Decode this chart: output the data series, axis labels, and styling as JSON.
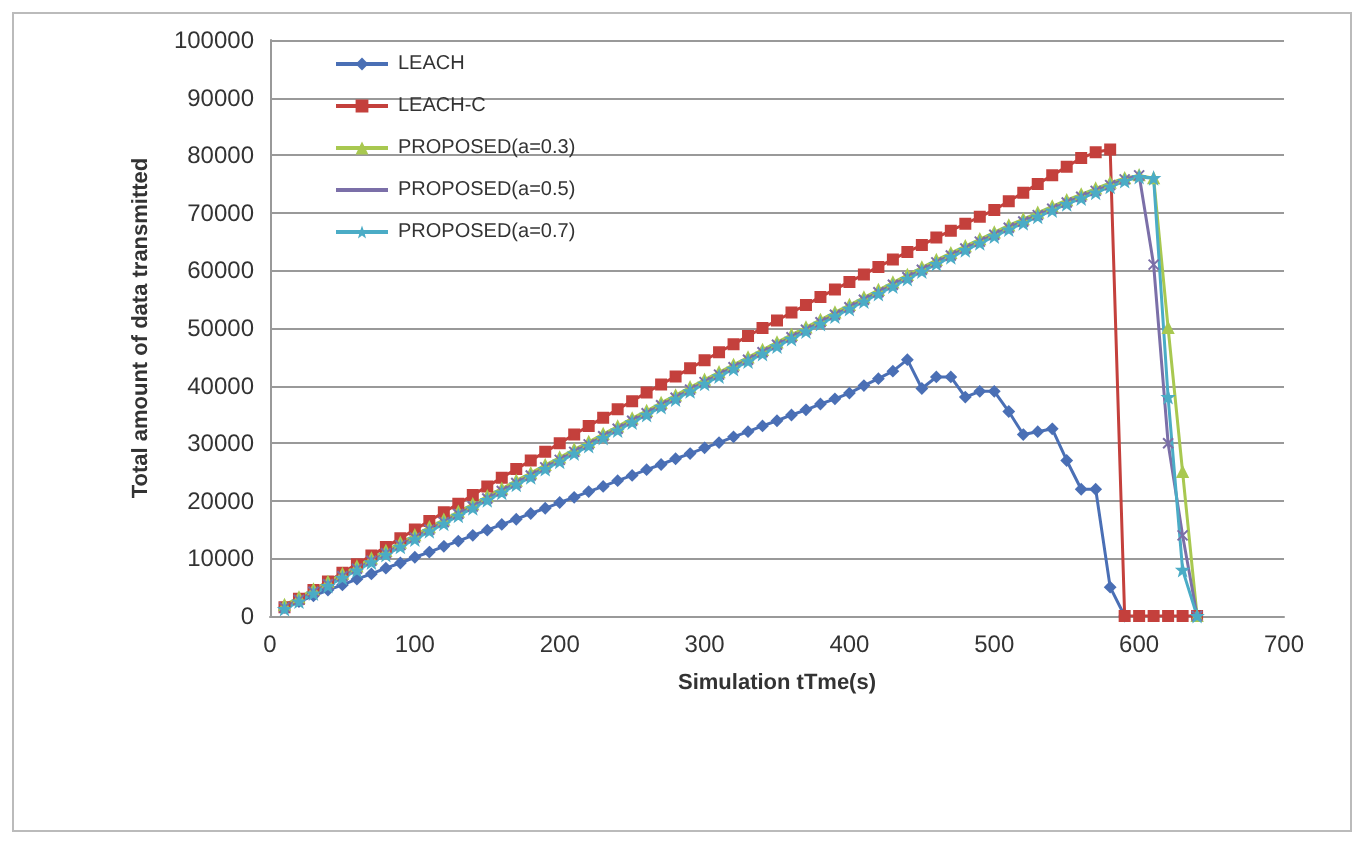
{
  "chart_data": {
    "type": "line",
    "xlabel": "Simulation tTme(s)",
    "ylabel": "Total amount of data transmitted",
    "x": [
      10,
      20,
      30,
      40,
      50,
      60,
      70,
      80,
      90,
      100,
      110,
      120,
      130,
      140,
      150,
      160,
      170,
      180,
      190,
      200,
      210,
      220,
      230,
      240,
      250,
      260,
      270,
      280,
      290,
      300,
      310,
      320,
      330,
      340,
      350,
      360,
      370,
      380,
      390,
      400,
      410,
      420,
      430,
      440,
      450,
      460,
      470,
      480,
      490,
      500,
      510,
      520,
      530,
      540,
      550,
      560,
      570,
      580,
      590,
      600,
      610,
      620,
      630,
      640
    ],
    "series": [
      {
        "name": "LEACH",
        "color": "#4a6fb5",
        "marker": "diamond",
        "values": [
          1500,
          2500,
          3500,
          4500,
          5400,
          6400,
          7300,
          8300,
          9200,
          10200,
          11100,
          12100,
          13000,
          14000,
          14900,
          15900,
          16800,
          17800,
          18700,
          19700,
          20600,
          21600,
          22500,
          23500,
          24400,
          25400,
          26300,
          27300,
          28200,
          29200,
          30100,
          31100,
          32000,
          33000,
          33900,
          34900,
          35800,
          36800,
          37700,
          38700,
          40000,
          41200,
          42500,
          44500,
          39500,
          41500,
          41500,
          38000,
          39000,
          39000,
          35500,
          31500,
          32000,
          32500,
          27000,
          22000,
          22000,
          5000,
          0,
          null,
          null,
          null,
          null,
          null
        ]
      },
      {
        "name": "LEACH-C",
        "color": "#c4403c",
        "marker": "square",
        "values": [
          1500,
          3000,
          4500,
          6000,
          7500,
          9000,
          10500,
          12000,
          13500,
          15000,
          16500,
          18000,
          19500,
          21000,
          22500,
          24000,
          25500,
          27000,
          28500,
          30000,
          31500,
          33000,
          34400,
          35900,
          37300,
          38800,
          40200,
          41600,
          43000,
          44400,
          45800,
          47200,
          48600,
          50000,
          51300,
          52700,
          54000,
          55400,
          56700,
          58000,
          59300,
          60600,
          61900,
          63200,
          64400,
          65700,
          66900,
          68100,
          69300,
          70500,
          72000,
          73500,
          75000,
          76500,
          78000,
          79500,
          80500,
          81000,
          0,
          0,
          0,
          0,
          0,
          0
        ]
      },
      {
        "name": "PROPOSED(a=0.3)",
        "color": "#a8c850",
        "marker": "triangle",
        "values": [
          1900,
          3200,
          4600,
          5900,
          7300,
          8600,
          10000,
          11300,
          12700,
          14000,
          15400,
          16700,
          18100,
          19400,
          20800,
          22100,
          23500,
          24800,
          26200,
          27500,
          28900,
          30200,
          31600,
          32900,
          34300,
          35600,
          37000,
          38300,
          39700,
          41000,
          42300,
          43600,
          44900,
          46200,
          47500,
          48800,
          50100,
          51400,
          52700,
          54000,
          55300,
          56600,
          57900,
          59200,
          60500,
          61800,
          63000,
          64200,
          65400,
          66600,
          67800,
          68900,
          70000,
          71100,
          72200,
          73200,
          74200,
          75200,
          76000,
          76500,
          76000,
          50000,
          25000,
          0
        ]
      },
      {
        "name": "PROPOSED(a=0.5)",
        "color": "#7b6fa8",
        "marker": "cross",
        "values": [
          1500,
          2800,
          4200,
          5500,
          6900,
          8200,
          9600,
          10900,
          12300,
          13600,
          15000,
          16300,
          17700,
          19000,
          20400,
          21700,
          23100,
          24400,
          25800,
          27100,
          28500,
          29800,
          31200,
          32500,
          33900,
          35200,
          36600,
          37900,
          39300,
          40600,
          41900,
          43200,
          44500,
          45800,
          47100,
          48400,
          49700,
          51000,
          52300,
          53600,
          54900,
          56200,
          57500,
          58800,
          60100,
          61400,
          62600,
          63800,
          65000,
          66200,
          67400,
          68500,
          69600,
          70700,
          71800,
          72800,
          73800,
          74800,
          75800,
          76500,
          61000,
          30000,
          14000,
          0
        ]
      },
      {
        "name": "PROPOSED(a=0.7)",
        "color": "#4bacc6",
        "marker": "star",
        "values": [
          1200,
          2500,
          3900,
          5200,
          6600,
          7900,
          9300,
          10600,
          12000,
          13300,
          14700,
          16000,
          17400,
          18700,
          20100,
          21400,
          22800,
          24100,
          25500,
          26800,
          28200,
          29500,
          30900,
          32200,
          33600,
          34900,
          36300,
          37600,
          39000,
          40300,
          41600,
          42900,
          44200,
          45500,
          46800,
          48100,
          49400,
          50700,
          52000,
          53300,
          54600,
          55900,
          57200,
          58500,
          59800,
          61100,
          62300,
          63500,
          64700,
          65900,
          67100,
          68200,
          69300,
          70400,
          71500,
          72500,
          73500,
          74500,
          75500,
          76200,
          76000,
          38000,
          8000,
          0
        ]
      }
    ],
    "xlim": [
      0,
      700
    ],
    "xticks": [
      0,
      100,
      200,
      300,
      400,
      500,
      600,
      700
    ],
    "ylim": [
      0,
      100000
    ],
    "yticks": [
      0,
      10000,
      20000,
      30000,
      40000,
      50000,
      60000,
      70000,
      80000,
      90000,
      100000
    ],
    "grid": "y",
    "legend": "top left",
    "line_style": "solid"
  }
}
